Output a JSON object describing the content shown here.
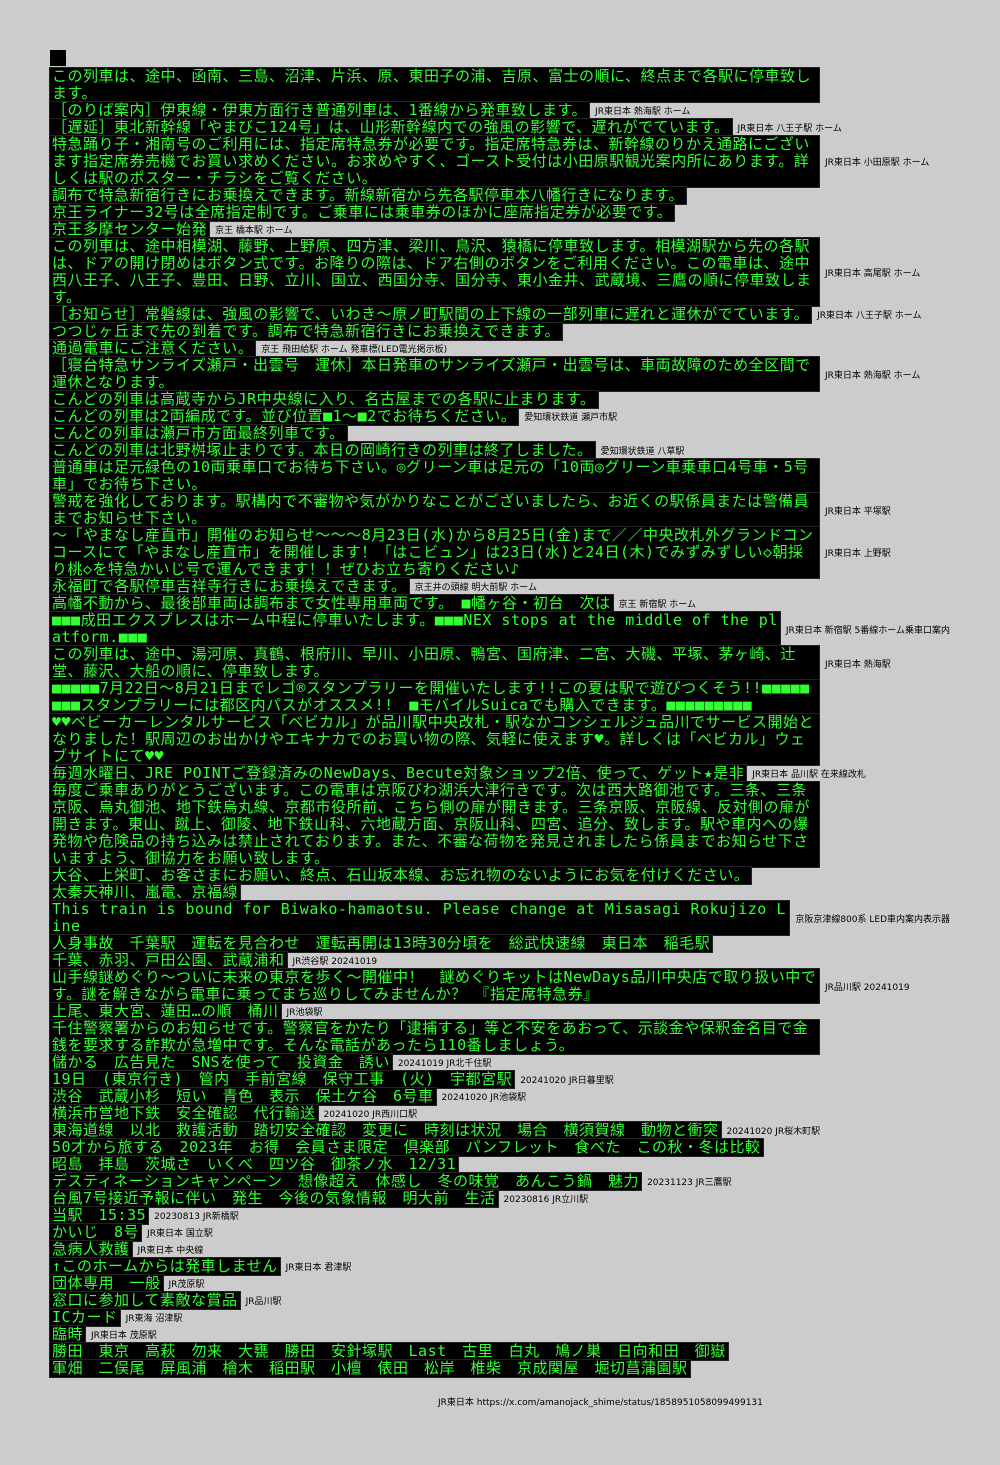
{
  "rows": [
    {
      "text": "この列車は、途中、函南、三島、沼津、片浜、原、東田子の浦、吉原、富士の順に、終点まで各駅に停車致します。",
      "caption": ""
    },
    {
      "text": "［のりば案内］伊東線・伊東方面行き普通列車は、1番線から発車致します。",
      "caption": "JR東日本 熱海駅 ホーム"
    },
    {
      "text": "［遅延］東北新幹線「やまびこ124号」は、山形新幹線内での強風の影響で、遅れがでています。",
      "caption": "JR東日本 八王子駅 ホーム"
    },
    {
      "text": "特急踊り子・湘南号のご利用には、指定席特急券が必要です。指定席特急券は、新幹線のりかえ通路にございます指定席券売機でお買い求めください。お求めやすく、ゴースト受付は小田原駅観光案内所にあります。詳しくは駅のポスター・チラシをご覧ください。",
      "caption": "JR東日本 小田原駅 ホーム"
    },
    {
      "text": "調布で特急新宿行きにお乗換えできます。新線新宿から先各駅停車本八幡行きになります。",
      "caption": ""
    },
    {
      "text": "京王ライナー32号は全席指定制です。ご乗車には乗車券のほかに座席指定券が必要です。",
      "caption": ""
    },
    {
      "text": "京王多摩センター始発",
      "caption": "京王 橋本駅 ホーム"
    },
    {
      "text": "この列車は、途中相模湖、藤野、上野原、四方津、梁川、鳥沢、猿橋に停車致します。相模湖駅から先の各駅は、ドアの開け閉めはボタン式です。お降りの際は、ドア右側のボタンをご利用ください。この電車は、途中西八王子、八王子、豊田、日野、立川、国立、西国分寺、国分寺、東小金井、武蔵境、三鷹の順に停車致します。",
      "caption": "JR東日本 高尾駅 ホーム"
    },
    {
      "text": "［お知らせ］常磐線は、強風の影響で、いわき～原ノ町駅間の上下線の一部列車に遅れと運休がでています。",
      "caption": "JR東日本 八王子駅 ホーム"
    },
    {
      "text": "つつじヶ丘まで先の到着です。調布で特急新宿行きにお乗換えできます。",
      "caption": ""
    },
    {
      "text": "通過電車にご注意ください。",
      "caption": "京王 飛田給駅 ホーム 発車標(LED電光掲示板)"
    },
    {
      "text": "［寝台特急サンライズ瀬戸・出雲号　運休］本日発車のサンライズ瀬戸・出雲号は、車両故障のため全区間で運休となります。",
      "caption": "JR東日本 熱海駅 ホーム"
    },
    {
      "text": "こんどの列車は高蔵寺からJR中央線に入り、名古屋までの各駅に止まります。",
      "caption": ""
    },
    {
      "text": "こんどの列車は2両編成です。並び位置■1～■2でお待ちください。",
      "caption": "愛知環状鉄道 瀬戸市駅"
    },
    {
      "text": "こんどの列車は瀬戸市方面最終列車です。",
      "caption": ""
    },
    {
      "text": "こんどの列車は北野桝塚止まりです。本日の岡崎行きの列車は終了しました。",
      "caption": "愛知環状鉄道 八草駅"
    },
    {
      "text": "普通車は足元緑色の10両乗車口でお待ち下さい。◎グリーン車は足元の「10両◎グリーン車乗車口4号車・5号車」でお待ち下さい。",
      "caption": ""
    },
    {
      "text": "警戒を強化しております。駅構内で不審物や気がかりなことがございましたら、お近くの駅係員または警備員までお知らせ下さい。",
      "caption": "JR東日本 平塚駅"
    },
    {
      "text": "～「やまなし産直市」開催のお知らせ～～～8月23日(水)から8月25日(金)まで／／中央改札外グランドコンコースにて「やまなし産直市」を開催します！「はこビュン」は23日(水)と24日(木)でみずみずしい◇朝採り桃◇を特急かいじ号で運んできます！！ぜひお立ち寄りください♪",
      "caption": "JR東日本 上野駅"
    },
    {
      "text": "永福町で各駅停車吉祥寺行きにお乗換えできます。",
      "caption": "京王井の頭線 明大前駅 ホーム"
    },
    {
      "text": "高幡不動から、最後部車両は調布まで女性専用車両です。　■幡ヶ谷・初台　次は",
      "caption": "京王 新宿駅 ホーム"
    },
    {
      "text": "■■■成田エクスプレスはホーム中程に停車いたします。■■■NEX stops at the middle of the platform.■■■",
      "caption": "JR東日本 新宿駅 5番線ホーム乗車口案内"
    },
    {
      "text": "この列車は、途中、湯河原、真鶴、根府川、早川、小田原、鴨宮、国府津、二宮、大磯、平塚、茅ヶ崎、辻堂、藤沢、大船の順に、停車致します。",
      "caption": "JR東日本 熱海駅"
    },
    {
      "text": "■■■■■7月22日～8月21日までレゴ®スタンプラリーを開催いたします!!この夏は駅で遊びつくそう!!■■■■■■■■スタンプラリーには都区内パスがオススメ!!　■モバイルSuicaでも購入できます。■■■■■■■■■",
      "caption": ""
    },
    {
      "text": "♥♥ベビーカーレンタルサービス「ベビカル」が品川駅中央改札・駅なかコンシェルジュ品川でサービス開始となりました！駅周辺のお出かけやエキナカでのお買い物の際、気軽に使えます♥。詳しくは「ベビカル」ウェブサイトにて♥♥",
      "caption": ""
    },
    {
      "text": "毎週水曜日、JRE POINTご登録済みのNewDays、Becute対象ショップ2倍、使って、ゲット★是非",
      "caption": "JR東日本 品川駅 在来線改札"
    },
    {
      "text": "毎度ご乗車ありがとうございます。この電車は京阪びわ湖浜大津行きです。次は西大路御池です。三条、三条京阪、烏丸御池、地下鉄烏丸線、京都市役所前、こちら側の扉が開きます。三条京阪、京阪線、反対側の扉が開きます。東山、蹴上、御陵、地下鉄山科、六地蔵方面、京阪山科、四宮、追分、致します。駅や車内への爆発物や危険品の持ち込みは禁止されております。また、不審な荷物を発見されましたら係員までお知らせ下さいますよう、御協力をお願い致します。",
      "caption": ""
    },
    {
      "text": "大谷、上栄町、お客さまにお願い、終点、石山坂本線、お忘れ物のないようにお気を付けください。",
      "caption": ""
    },
    {
      "text": "太秦天神川、嵐電、京福線",
      "caption": ""
    },
    {
      "text": "This train is bound for Biwako-hamaotsu. Please change at Misasagi Rokujizo Line",
      "caption": "京阪京津線800系 LED車内案内表示器"
    },
    {
      "text": "人身事故　千葉駅　運転を見合わせ　運転再開は13時30分頃を　総武快速線　東日本　稲毛駅",
      "caption": ""
    },
    {
      "text": "千葉、赤羽、戸田公園、武蔵浦和",
      "caption": "JR渋谷駅 20241019"
    },
    {
      "text": "山手線謎めぐり～ついに未来の東京を歩く～開催中！　謎めぐりキットはNewDays品川中央店で取り扱い中です。謎を解きながら電車に乗ってまち巡りしてみませんか？　『指定席特急券』",
      "caption": "JR品川駅 20241019"
    },
    {
      "text": "上尾、東大宮、蓮田…の順　桶川",
      "caption": "JR池袋駅"
    },
    {
      "text": "千住警察署からのお知らせです。警察官をかたり「逮捕する」等と不安をあおって、示談金や保釈金名目で金銭を要求する詐欺が急増中です。そんな電話があったら110番しましょう。",
      "caption": ""
    },
    {
      "text": "儲かる　広告見た　SNSを使って　投資金　誘い",
      "caption": "20241019 JR北千住駅"
    },
    {
      "text": "19日　(東京行き)　管内　手前宮線　保守工事　(火)　宇都宮駅",
      "caption": "20241020 JR日暮里駅"
    },
    {
      "text": "渋谷　武蔵小杉　短い　青色　表示　保土ケ谷　6号車",
      "caption": "20241020 JR池袋駅"
    },
    {
      "text": "横浜市営地下鉄　安全確認　代行輸送",
      "caption": "20241020 JR西川口駅"
    },
    {
      "text": "東海道線　以北　救護活動　踏切安全確認　変更に　時刻は状況　場合　横須賀線　動物と衝突",
      "caption": "20241020 JR桜木町駅"
    },
    {
      "text": "50才から旅する　2023年　お得　会員さま限定　倶楽部　パンフレット　食べた　この秋・冬は比較",
      "caption": ""
    },
    {
      "text": "昭島　拝島　茨城さ　いくべ　四ツ谷　御茶ノ水　12/31",
      "caption": ""
    },
    {
      "text": "デスティネーションキャンペーン　想像超え　体感し　冬の味覚　あんこう鍋　魅力",
      "caption": "20231123 JR三鷹駅"
    },
    {
      "text": "台風7号接近予報に伴い　発生　今後の気象情報　明大前　生活",
      "caption": "20230816 JR立川駅"
    },
    {
      "text": "当駅　15:35",
      "caption": "20230813 JR新橋駅"
    },
    {
      "text": "かいじ　8号",
      "caption": "JR東日本 国立駅"
    },
    {
      "text": "急病人救護",
      "caption": "JR東日本 中央線"
    },
    {
      "text": "↑このホームからは発車しません",
      "caption": "JR東日本 君津駅"
    },
    {
      "text": "団体専用　一般",
      "caption": "JR茂原駅"
    },
    {
      "text": "窓口に参加して素敵な賞品",
      "caption": "JR品川駅"
    },
    {
      "text": "ICカード",
      "caption": "JR東海 沼津駅"
    },
    {
      "text": "臨時",
      "caption": "JR東日本 茂原駅"
    },
    {
      "text": "勝田　東京　高萩　勿来　大甕　勝田　安針塚駅　Last　古里　白丸　鳩ノ巣　日向和田　御嶽",
      "caption": ""
    },
    {
      "text": "軍畑　二俣尾　屏風浦　檜木　稲田駅　小檀　俵田　松岸　椎柴　京成関屋　堀切菖蒲園駅",
      "caption": ""
    }
  ],
  "footer": "JR東日本 https://x.com/amanojack_shime/status/1858951058099499131",
  "colors": {
    "background": "#cccccc",
    "led_bg": "#000000",
    "led_fg": "#33ff33"
  }
}
